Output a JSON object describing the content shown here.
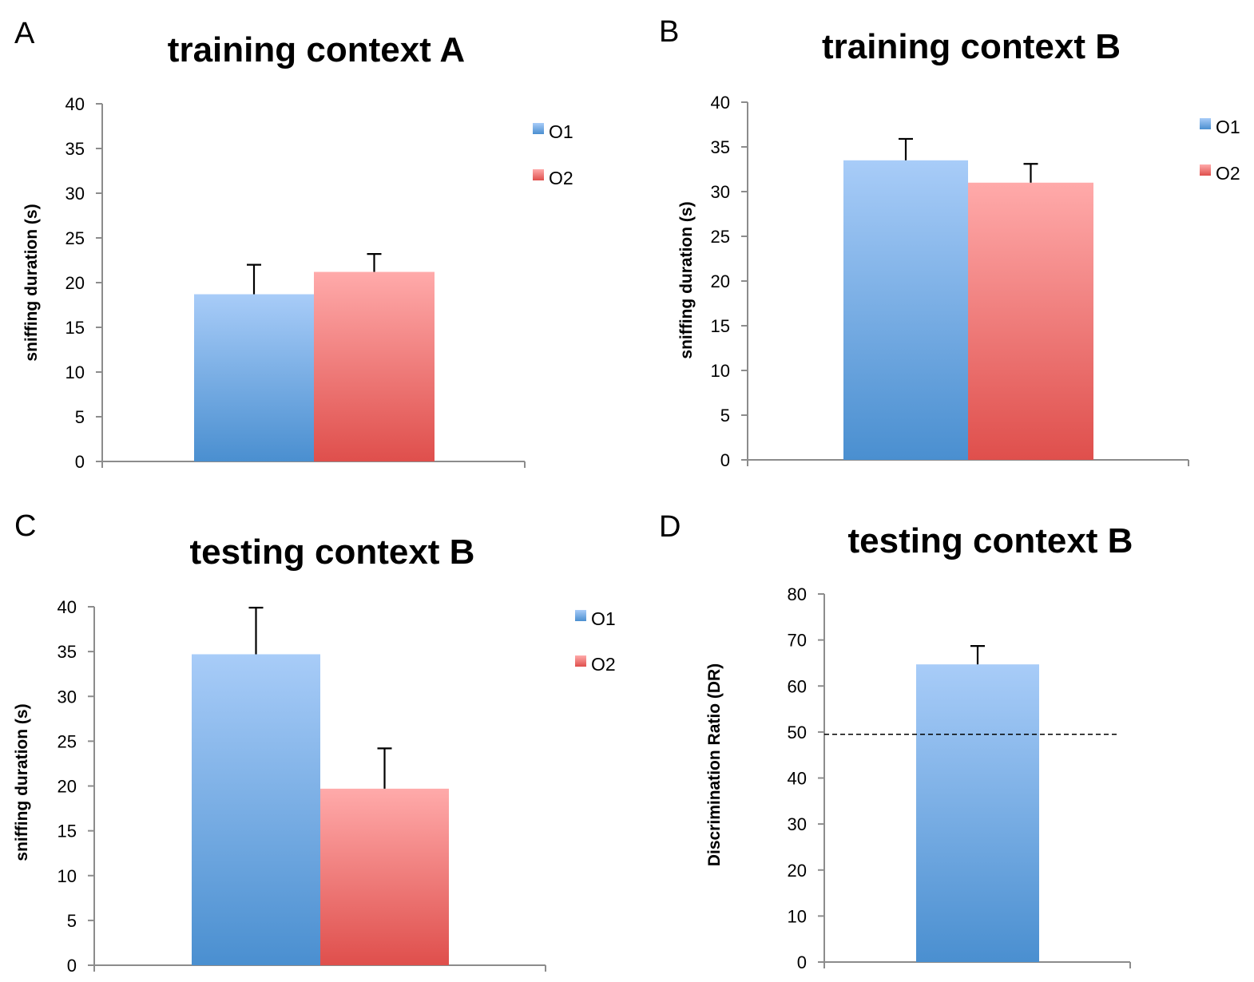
{
  "colors": {
    "O1_top": "#a8ccf8",
    "O1_bottom": "#4a8fd0",
    "O2_top": "#ffaaaa",
    "O2_bottom": "#df4f4c"
  },
  "chart_data": [
    {
      "type": "bar",
      "letter": "A",
      "title": "training context A",
      "ylabel": "sniffing duration (s)",
      "ylim": [
        0,
        40
      ],
      "yticks": [
        "0",
        "5",
        "10",
        "15",
        "20",
        "25",
        "30",
        "35",
        "40"
      ],
      "legend": [
        "O1",
        "O2"
      ],
      "legend_position": "right",
      "series": [
        {
          "name": "O1",
          "value": 18.7,
          "error": 3.3
        },
        {
          "name": "O2",
          "value": 21.2,
          "error": 2.0
        }
      ]
    },
    {
      "type": "bar",
      "letter": "B",
      "title": "training context B",
      "ylabel": "sniffing duration (s)",
      "ylim": [
        0,
        40
      ],
      "yticks": [
        "0",
        "5",
        "10",
        "15",
        "20",
        "25",
        "30",
        "35",
        "40"
      ],
      "legend": [
        "O1",
        "O2"
      ],
      "legend_position": "right",
      "series": [
        {
          "name": "O1",
          "value": 33.5,
          "error": 2.4
        },
        {
          "name": "O2",
          "value": 31.0,
          "error": 2.1
        }
      ]
    },
    {
      "type": "bar",
      "letter": "C",
      "title": "testing context B",
      "ylabel": "sniffing duration (s)",
      "ylim": [
        0,
        40
      ],
      "yticks": [
        "0",
        "5",
        "10",
        "15",
        "20",
        "25",
        "30",
        "35",
        "40"
      ],
      "legend": [
        "O1",
        "O2"
      ],
      "legend_position": "right",
      "series": [
        {
          "name": "O1",
          "value": 34.7,
          "error": 5.2
        },
        {
          "name": "O2",
          "value": 19.7,
          "error": 4.5
        }
      ]
    },
    {
      "type": "bar",
      "letter": "D",
      "title": "testing context B",
      "ylabel": "Discrimination Ratio  (DR)",
      "ylim": [
        0,
        80
      ],
      "yticks": [
        "0",
        "10",
        "20",
        "30",
        "40",
        "50",
        "60",
        "70",
        "80"
      ],
      "legend": [],
      "reference_line": 49.5,
      "series": [
        {
          "name": "O1",
          "value": 64.7,
          "error": 4.0
        }
      ]
    }
  ]
}
